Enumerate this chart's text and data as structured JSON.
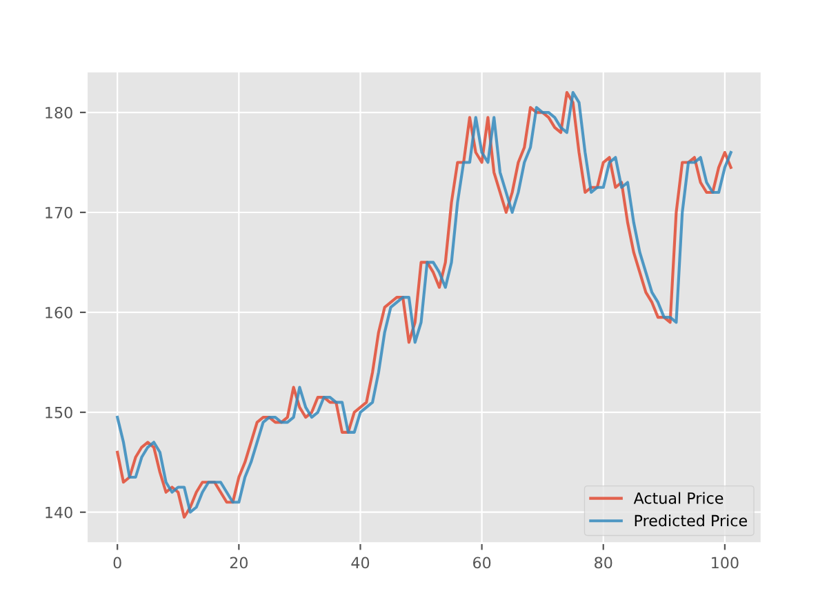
{
  "chart_data": {
    "type": "line",
    "x": [
      0,
      1,
      2,
      3,
      4,
      5,
      6,
      7,
      8,
      9,
      10,
      11,
      12,
      13,
      14,
      15,
      16,
      17,
      18,
      19,
      20,
      21,
      22,
      23,
      24,
      25,
      26,
      27,
      28,
      29,
      30,
      31,
      32,
      33,
      34,
      35,
      36,
      37,
      38,
      39,
      40,
      41,
      42,
      43,
      44,
      45,
      46,
      47,
      48,
      49,
      50,
      51,
      52,
      53,
      54,
      55,
      56,
      57,
      58,
      59,
      60,
      61,
      62,
      63,
      64,
      65,
      66,
      67,
      68,
      69,
      70,
      71,
      72,
      73,
      74,
      75,
      76,
      77,
      78,
      79,
      80,
      81,
      82,
      83,
      84,
      85,
      86,
      87,
      88,
      89,
      90,
      91,
      92,
      93,
      94,
      95,
      96,
      97,
      98,
      99,
      100,
      101
    ],
    "series": [
      {
        "name": "Actual Price",
        "color": "#e24a33",
        "values": [
          146,
          143,
          143.5,
          145.5,
          146.5,
          147,
          146.5,
          144,
          142,
          142.5,
          142,
          139.5,
          140.5,
          142,
          143,
          143,
          143,
          142,
          141,
          141,
          143.5,
          145,
          147,
          149,
          149.5,
          149.5,
          149,
          149,
          149.5,
          152.5,
          150.5,
          149.5,
          150,
          151.5,
          151.5,
          151,
          151,
          148,
          148,
          150,
          150.5,
          151,
          154,
          158,
          160.5,
          161,
          161.5,
          161.5,
          157,
          159,
          165,
          165,
          164,
          162.5,
          165,
          171,
          175,
          175,
          179.5,
          176,
          175,
          179.5,
          174,
          172,
          170,
          172,
          175,
          176.5,
          180.5,
          180,
          180,
          179.5,
          178.5,
          178,
          182,
          181,
          176,
          172,
          172.5,
          172.5,
          175,
          175.5,
          172.5,
          173,
          169,
          166,
          164,
          162,
          161,
          159.5,
          159.5,
          159,
          170,
          175,
          175,
          175.5,
          173,
          172,
          172,
          174.5,
          176,
          174.5
        ]
      },
      {
        "name": "Predicted Price",
        "color": "#348abd",
        "values": [
          149.5,
          147,
          143.5,
          143.5,
          145.5,
          146.5,
          147,
          146,
          143,
          142,
          142.5,
          142.5,
          140,
          140.5,
          142,
          143,
          143,
          143,
          142,
          141,
          141,
          143.5,
          145,
          147,
          149,
          149.5,
          149.5,
          149,
          149,
          149.5,
          152.5,
          150.5,
          149.5,
          150,
          151.5,
          151.5,
          151,
          151,
          148,
          148,
          150,
          150.5,
          151,
          154,
          158,
          160.5,
          161,
          161.5,
          161.5,
          157,
          159,
          165,
          165,
          164,
          162.5,
          165,
          171,
          175,
          175,
          179.5,
          176,
          175,
          179.5,
          174,
          172,
          170,
          172,
          175,
          176.5,
          180.5,
          180,
          180,
          179.5,
          178.5,
          178,
          182,
          181,
          176,
          172,
          172.5,
          172.5,
          175,
          175.5,
          172.5,
          173,
          169,
          166,
          164,
          162,
          161,
          159.5,
          159.5,
          159,
          170,
          175,
          175,
          175.5,
          173,
          172,
          172,
          174.5,
          176
        ]
      }
    ],
    "xlim": [
      -5.05,
      106.05
    ],
    "ylim": [
      136.9,
      184.1
    ],
    "xticks": [
      0,
      20,
      40,
      60,
      80,
      100
    ],
    "yticks": [
      140,
      150,
      160,
      170,
      180
    ],
    "grid": true,
    "legend": "bottom right",
    "marker": "none",
    "line_style": "solid"
  }
}
